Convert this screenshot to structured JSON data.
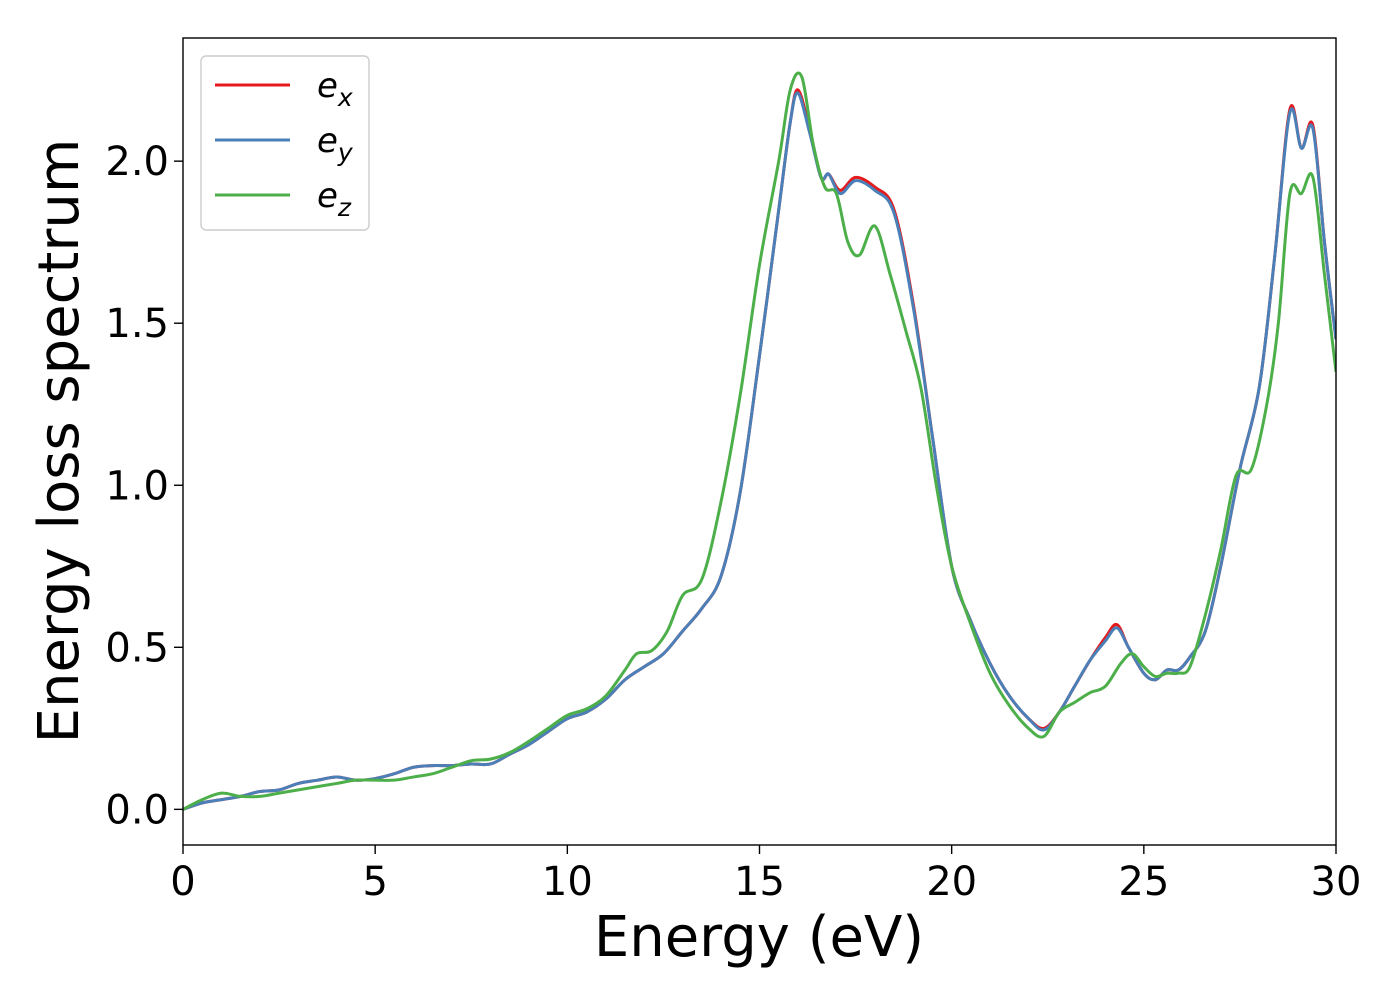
{
  "chart_data": {
    "type": "line",
    "title": "",
    "xlabel": "Energy (eV)",
    "ylabel": "Energy loss spectrum",
    "xlim": [
      0,
      30
    ],
    "ylim": [
      -0.11,
      2.38
    ],
    "xticks": [
      0,
      5,
      10,
      15,
      20,
      25,
      30
    ],
    "yticks": [
      0.0,
      0.5,
      1.0,
      1.5,
      2.0
    ],
    "xtick_labels": [
      "0",
      "5",
      "10",
      "15",
      "20",
      "25",
      "30"
    ],
    "ytick_labels": [
      "0.0",
      "0.5",
      "1.0",
      "1.5",
      "2.0"
    ],
    "grid": false,
    "legend_position": "top-left",
    "series": [
      {
        "name": "e_x",
        "legend_base": "e",
        "legend_sub": "x",
        "color": "#e41a1c",
        "points": [
          [
            0,
            0
          ],
          [
            0.5,
            0.02
          ],
          [
            1,
            0.03
          ],
          [
            1.5,
            0.04
          ],
          [
            2,
            0.055
          ],
          [
            2.5,
            0.06
          ],
          [
            3,
            0.08
          ],
          [
            3.5,
            0.09
          ],
          [
            4,
            0.1
          ],
          [
            4.5,
            0.09
          ],
          [
            5,
            0.095
          ],
          [
            5.5,
            0.11
          ],
          [
            6,
            0.13
          ],
          [
            6.5,
            0.135
          ],
          [
            7,
            0.135
          ],
          [
            7.5,
            0.14
          ],
          [
            8,
            0.14
          ],
          [
            8.5,
            0.17
          ],
          [
            9,
            0.2
          ],
          [
            9.5,
            0.24
          ],
          [
            10,
            0.28
          ],
          [
            10.5,
            0.3
          ],
          [
            11,
            0.34
          ],
          [
            11.5,
            0.4
          ],
          [
            12,
            0.44
          ],
          [
            12.5,
            0.48
          ],
          [
            13,
            0.55
          ],
          [
            13.5,
            0.62
          ],
          [
            14,
            0.72
          ],
          [
            14.5,
            0.98
          ],
          [
            15,
            1.4
          ],
          [
            15.5,
            1.85
          ],
          [
            15.8,
            2.12
          ],
          [
            16,
            2.22
          ],
          [
            16.3,
            2.1
          ],
          [
            16.6,
            1.95
          ],
          [
            16.8,
            1.96
          ],
          [
            17.1,
            1.91
          ],
          [
            17.5,
            1.95
          ],
          [
            18,
            1.92
          ],
          [
            18.5,
            1.85
          ],
          [
            19,
            1.56
          ],
          [
            19.5,
            1.15
          ],
          [
            20,
            0.75
          ],
          [
            20.5,
            0.58
          ],
          [
            21,
            0.45
          ],
          [
            21.5,
            0.35
          ],
          [
            22,
            0.28
          ],
          [
            22.4,
            0.25
          ],
          [
            22.8,
            0.3
          ],
          [
            23.2,
            0.38
          ],
          [
            23.6,
            0.46
          ],
          [
            24,
            0.53
          ],
          [
            24.3,
            0.57
          ],
          [
            24.6,
            0.5
          ],
          [
            25,
            0.42
          ],
          [
            25.3,
            0.4
          ],
          [
            25.6,
            0.43
          ],
          [
            25.9,
            0.43
          ],
          [
            26.2,
            0.47
          ],
          [
            26.6,
            0.55
          ],
          [
            27,
            0.75
          ],
          [
            27.5,
            1.05
          ],
          [
            28,
            1.3
          ],
          [
            28.4,
            1.7
          ],
          [
            28.8,
            2.16
          ],
          [
            29.1,
            2.04
          ],
          [
            29.4,
            2.11
          ],
          [
            29.7,
            1.75
          ],
          [
            30,
            1.45
          ]
        ]
      },
      {
        "name": "e_y",
        "legend_base": "e",
        "legend_sub": "y",
        "color": "#4a7fb8",
        "points": [
          [
            0,
            0
          ],
          [
            0.5,
            0.02
          ],
          [
            1,
            0.03
          ],
          [
            1.5,
            0.04
          ],
          [
            2,
            0.055
          ],
          [
            2.5,
            0.06
          ],
          [
            3,
            0.08
          ],
          [
            3.5,
            0.09
          ],
          [
            4,
            0.1
          ],
          [
            4.5,
            0.09
          ],
          [
            5,
            0.095
          ],
          [
            5.5,
            0.11
          ],
          [
            6,
            0.13
          ],
          [
            6.5,
            0.135
          ],
          [
            7,
            0.135
          ],
          [
            7.5,
            0.14
          ],
          [
            8,
            0.14
          ],
          [
            8.5,
            0.17
          ],
          [
            9,
            0.2
          ],
          [
            9.5,
            0.24
          ],
          [
            10,
            0.28
          ],
          [
            10.5,
            0.3
          ],
          [
            11,
            0.34
          ],
          [
            11.5,
            0.4
          ],
          [
            12,
            0.44
          ],
          [
            12.5,
            0.48
          ],
          [
            13,
            0.55
          ],
          [
            13.5,
            0.62
          ],
          [
            14,
            0.72
          ],
          [
            14.5,
            0.98
          ],
          [
            15,
            1.4
          ],
          [
            15.5,
            1.85
          ],
          [
            15.8,
            2.12
          ],
          [
            16,
            2.21
          ],
          [
            16.3,
            2.09
          ],
          [
            16.6,
            1.95
          ],
          [
            16.8,
            1.96
          ],
          [
            17.1,
            1.9
          ],
          [
            17.5,
            1.94
          ],
          [
            18,
            1.91
          ],
          [
            18.5,
            1.84
          ],
          [
            19,
            1.55
          ],
          [
            19.5,
            1.15
          ],
          [
            20,
            0.75
          ],
          [
            20.5,
            0.58
          ],
          [
            21,
            0.45
          ],
          [
            21.5,
            0.35
          ],
          [
            22,
            0.28
          ],
          [
            22.4,
            0.245
          ],
          [
            22.8,
            0.3
          ],
          [
            23.2,
            0.38
          ],
          [
            23.6,
            0.46
          ],
          [
            24,
            0.52
          ],
          [
            24.3,
            0.56
          ],
          [
            24.6,
            0.5
          ],
          [
            25,
            0.42
          ],
          [
            25.3,
            0.4
          ],
          [
            25.6,
            0.43
          ],
          [
            25.9,
            0.43
          ],
          [
            26.2,
            0.47
          ],
          [
            26.6,
            0.55
          ],
          [
            27,
            0.75
          ],
          [
            27.5,
            1.05
          ],
          [
            28,
            1.3
          ],
          [
            28.4,
            1.7
          ],
          [
            28.8,
            2.15
          ],
          [
            29.1,
            2.04
          ],
          [
            29.4,
            2.1
          ],
          [
            29.7,
            1.75
          ],
          [
            30,
            1.45
          ]
        ]
      },
      {
        "name": "e_z",
        "legend_base": "e",
        "legend_sub": "z",
        "color": "#4daf4a",
        "points": [
          [
            0,
            0
          ],
          [
            0.5,
            0.03
          ],
          [
            1,
            0.05
          ],
          [
            1.5,
            0.04
          ],
          [
            2,
            0.04
          ],
          [
            2.5,
            0.05
          ],
          [
            3,
            0.06
          ],
          [
            3.5,
            0.07
          ],
          [
            4,
            0.08
          ],
          [
            4.5,
            0.09
          ],
          [
            5,
            0.09
          ],
          [
            5.5,
            0.09
          ],
          [
            6,
            0.1
          ],
          [
            6.5,
            0.11
          ],
          [
            7,
            0.13
          ],
          [
            7.5,
            0.15
          ],
          [
            8,
            0.155
          ],
          [
            8.5,
            0.175
          ],
          [
            9,
            0.21
          ],
          [
            9.5,
            0.25
          ],
          [
            10,
            0.29
          ],
          [
            10.5,
            0.31
          ],
          [
            11,
            0.35
          ],
          [
            11.5,
            0.43
          ],
          [
            11.8,
            0.48
          ],
          [
            12.2,
            0.49
          ],
          [
            12.6,
            0.55
          ],
          [
            13,
            0.66
          ],
          [
            13.5,
            0.71
          ],
          [
            14,
            0.95
          ],
          [
            14.5,
            1.28
          ],
          [
            15,
            1.68
          ],
          [
            15.5,
            2.0
          ],
          [
            15.8,
            2.22
          ],
          [
            16.1,
            2.26
          ],
          [
            16.4,
            2.05
          ],
          [
            16.7,
            1.92
          ],
          [
            17,
            1.9
          ],
          [
            17.3,
            1.75
          ],
          [
            17.6,
            1.71
          ],
          [
            18,
            1.8
          ],
          [
            18.4,
            1.65
          ],
          [
            18.8,
            1.48
          ],
          [
            19.2,
            1.3
          ],
          [
            19.6,
            1.0
          ],
          [
            20,
            0.75
          ],
          [
            20.5,
            0.57
          ],
          [
            21,
            0.42
          ],
          [
            21.5,
            0.32
          ],
          [
            22,
            0.25
          ],
          [
            22.4,
            0.225
          ],
          [
            22.8,
            0.3
          ],
          [
            23.2,
            0.33
          ],
          [
            23.6,
            0.36
          ],
          [
            24,
            0.38
          ],
          [
            24.4,
            0.45
          ],
          [
            24.7,
            0.48
          ],
          [
            25,
            0.44
          ],
          [
            25.3,
            0.41
          ],
          [
            25.6,
            0.42
          ],
          [
            25.9,
            0.42
          ],
          [
            26.2,
            0.44
          ],
          [
            26.6,
            0.6
          ],
          [
            27,
            0.8
          ],
          [
            27.4,
            1.03
          ],
          [
            27.8,
            1.05
          ],
          [
            28.2,
            1.25
          ],
          [
            28.5,
            1.5
          ],
          [
            28.8,
            1.9
          ],
          [
            29.1,
            1.9
          ],
          [
            29.4,
            1.95
          ],
          [
            29.7,
            1.65
          ],
          [
            30,
            1.35
          ]
        ]
      }
    ]
  }
}
